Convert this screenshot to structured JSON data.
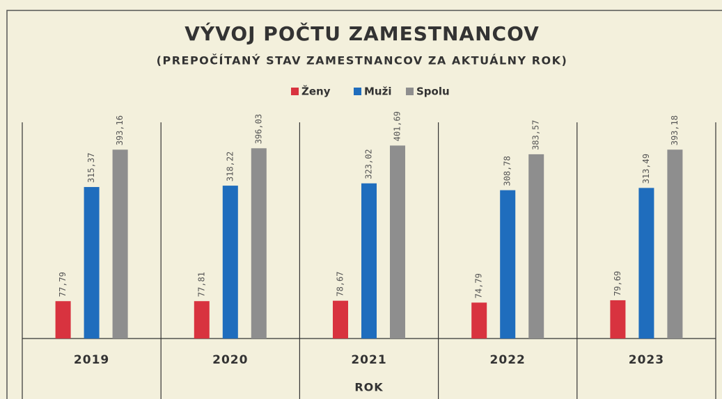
{
  "chart_data": {
    "type": "bar",
    "title": "VÝVOJ POČTU ZAMESTNANCOV",
    "subtitle": "(PREPOČÍTANÝ STAV ZAMESTNANCOV ZA AKTUÁLNY ROK)",
    "x_label": "ROK",
    "categories": [
      "2019",
      "2020",
      "2021",
      "2022",
      "2023"
    ],
    "series": [
      {
        "name": "Ženy",
        "color": "#d8333f",
        "values": [
          77.79,
          77.81,
          78.67,
          74.79,
          79.69
        ],
        "value_labels": [
          "77,79",
          "77,81",
          "78,67",
          "74,79",
          "79,69"
        ]
      },
      {
        "name": "Muži",
        "color": "#1f6dbd",
        "values": [
          315.37,
          318.22,
          323.02,
          308.78,
          313.49
        ],
        "value_labels": [
          "315,37",
          "318,22",
          "323,02",
          "308,78",
          "313,49"
        ]
      },
      {
        "name": "Spolu",
        "color": "#8e8e8e",
        "values": [
          393.16,
          396.03,
          401.69,
          383.57,
          393.18
        ],
        "value_labels": [
          "393,16",
          "396,03",
          "401,69",
          "383,57",
          "393,18"
        ]
      }
    ],
    "ylim": [
      0,
      450
    ],
    "legend": "top"
  }
}
